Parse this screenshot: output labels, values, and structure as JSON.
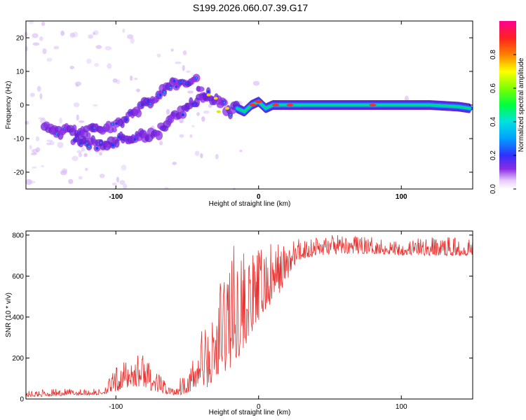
{
  "title": "S199.2026.060.07.39.G17",
  "chart_data": [
    {
      "type": "heatmap",
      "title": "S199.2026.060.07.39.G17",
      "xlabel": "Height of straight line (km)",
      "ylabel": "Frequency (Hz)",
      "xlim": [
        -163,
        150
      ],
      "ylim": [
        -25,
        25
      ],
      "xticks": [
        -100,
        0,
        100
      ],
      "yticks": [
        -20,
        -10,
        0,
        10,
        20
      ],
      "xtick_labels": [
        "-100",
        "0",
        "100"
      ],
      "ytick_labels": [
        "-20",
        "-10",
        "0",
        "10",
        "20"
      ],
      "colorbar": {
        "label": "Normalized spectral amplitude",
        "range": [
          0.0,
          1.0
        ],
        "ticks": [
          0.0,
          0.2,
          0.4,
          0.6,
          0.8
        ],
        "tick_labels": [
          "0.0",
          "0.2",
          "0.4",
          "0.6",
          "0.8"
        ]
      },
      "tracks": [
        {
          "name": "upper-branch",
          "x": [
            -150,
            -140,
            -120,
            -100,
            -90,
            -80,
            -70,
            -60,
            -50,
            -45,
            -40,
            -35,
            -30,
            -25,
            -20,
            -15
          ],
          "y": [
            -6,
            -8,
            -8,
            -6,
            -3,
            0,
            3,
            6,
            6,
            8,
            4,
            3,
            2,
            0,
            -2,
            -1
          ]
        },
        {
          "name": "lower-branch",
          "x": [
            -130,
            -110,
            -95,
            -80,
            -70,
            -65,
            -60,
            -50,
            -45,
            -40,
            -35
          ],
          "y": [
            -10,
            -12,
            -10,
            -9,
            -8,
            -6,
            -4,
            -1,
            1,
            3,
            2
          ]
        },
        {
          "name": "main-line",
          "x": [
            -15,
            -10,
            -5,
            0,
            5,
            10,
            15,
            20,
            40,
            60,
            80,
            100,
            120,
            140,
            148
          ],
          "y": [
            -1,
            -2,
            0,
            1,
            -1,
            0,
            0,
            0,
            0,
            0,
            0,
            0,
            0,
            -0.5,
            -1
          ]
        }
      ]
    },
    {
      "type": "line",
      "xlabel": "Height of straight line (km)",
      "ylabel": "SNR (10 * v/v)",
      "xlim": [
        -163,
        150
      ],
      "ylim": [
        0,
        820
      ],
      "xticks": [
        -100,
        0,
        100
      ],
      "yticks": [
        0,
        200,
        400,
        600,
        800
      ],
      "xtick_labels": [
        "-100",
        "0",
        "100"
      ],
      "ytick_labels": [
        "0",
        "200",
        "400",
        "600",
        "800"
      ],
      "series": [
        {
          "name": "SNR",
          "color": "#e8302e",
          "envelope": {
            "x": [
              -163,
              -140,
              -110,
              -97,
              -90,
              -80,
              -75,
              -60,
              -55,
              -45,
              -40,
              -35,
              -30,
              -25,
              -20,
              -15,
              -10,
              -5,
              0,
              5,
              10,
              15,
              20,
              25,
              30,
              40,
              60,
              80,
              100,
              120,
              140,
              150
            ],
            "low": [
              10,
              15,
              20,
              40,
              60,
              60,
              40,
              15,
              20,
              40,
              50,
              60,
              80,
              120,
              150,
              200,
              250,
              320,
              380,
              430,
              470,
              520,
              580,
              650,
              680,
              700,
              710,
              710,
              700,
              700,
              700,
              700
            ],
            "high": [
              40,
              50,
              50,
              180,
              200,
              240,
              150,
              60,
              110,
              200,
              400,
              320,
              500,
              680,
              800,
              760,
              740,
              700,
              740,
              750,
              760,
              770,
              770,
              780,
              790,
              800,
              800,
              790,
              780,
              790,
              790,
              790
            ]
          }
        }
      ]
    }
  ]
}
